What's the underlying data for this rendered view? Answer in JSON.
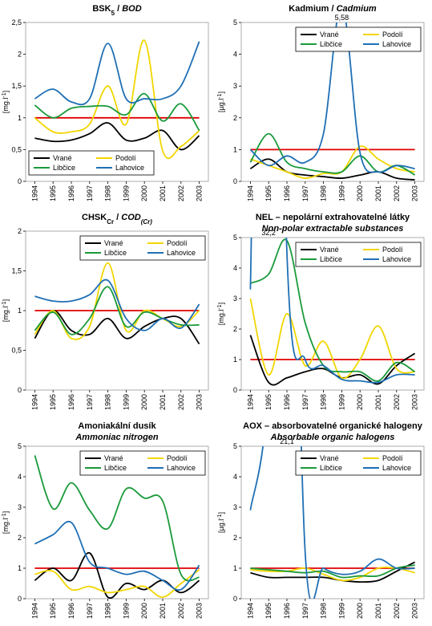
{
  "chart_data": [
    {
      "type": "line",
      "title": [
        {
          "text": "BSK"
        },
        {
          "text": "5",
          "sub": true
        },
        {
          "text": " / "
        },
        {
          "text": "BOD",
          "italic": true
        }
      ],
      "ylabel": [
        {
          "text": "[mg.l"
        },
        {
          "text": "-1",
          "sup": true
        },
        {
          "text": "]"
        }
      ],
      "categories": [
        "1994",
        "1995",
        "1996",
        "1997",
        "1998",
        "1999",
        "2000",
        "2001",
        "2002",
        "2003"
      ],
      "ylim": [
        0,
        2.5
      ],
      "yticks": [
        0,
        {
          "value": 0.5,
          "label": "0,5"
        },
        1,
        {
          "value": 1.5,
          "label": "1,5"
        },
        2,
        {
          "value": 2.5,
          "label": "2,5"
        }
      ],
      "limit": 1,
      "limit_color": "#e00000",
      "legend": "bottom-left",
      "series": [
        {
          "name": "Vrané",
          "color": "#000000",
          "values": [
            0.68,
            0.63,
            0.65,
            0.75,
            0.92,
            0.65,
            0.68,
            0.8,
            0.5,
            0.72
          ]
        },
        {
          "name": "Podolí",
          "color": "#f2d600",
          "values": [
            1.0,
            0.78,
            0.78,
            0.9,
            1.5,
            0.9,
            2.22,
            0.48,
            0.55,
            0.8
          ]
        },
        {
          "name": "Libčice",
          "color": "#1a9a3a",
          "values": [
            1.2,
            1.0,
            1.15,
            1.18,
            1.18,
            1.05,
            1.38,
            0.95,
            1.22,
            0.8
          ]
        },
        {
          "name": "Lahovice",
          "color": "#1f6fb5",
          "values": [
            1.3,
            1.45,
            1.25,
            1.3,
            2.17,
            1.3,
            1.3,
            1.3,
            1.5,
            2.2
          ]
        }
      ]
    },
    {
      "type": "line",
      "title": [
        {
          "text": "Kadmium / "
        },
        {
          "text": "Cadmium",
          "italic": true
        }
      ],
      "ylabel": [
        {
          "text": "[µg.l"
        },
        {
          "text": "-1",
          "sup": true
        },
        {
          "text": "]"
        }
      ],
      "categories": [
        "1994",
        "1995",
        "1996",
        "1997",
        "1998",
        "1999",
        "2000",
        "2001",
        "2002",
        "2003"
      ],
      "ylim": [
        0,
        5
      ],
      "yticks": [
        0,
        1,
        2,
        3,
        4,
        5
      ],
      "limit": 1,
      "limit_color": "#e00000",
      "legend": "top-right",
      "series": [
        {
          "name": "Vrané",
          "color": "#000000",
          "values": [
            0.4,
            0.7,
            0.3,
            0.2,
            0.15,
            0.1,
            0.2,
            0.3,
            0.1,
            0.05
          ]
        },
        {
          "name": "Podolí",
          "color": "#f2d600",
          "values": [
            0.7,
            0.5,
            0.3,
            0.1,
            0.25,
            0.3,
            1.1,
            0.7,
            0.4,
            0.3
          ]
        },
        {
          "name": "Libčice",
          "color": "#1a9a3a",
          "values": [
            0.6,
            1.5,
            0.6,
            0.4,
            0.3,
            0.3,
            0.8,
            0.3,
            0.5,
            0.2
          ]
        },
        {
          "name": "Lahovice",
          "color": "#1f6fb5",
          "values": [
            1.0,
            0.5,
            0.8,
            0.6,
            1.5,
            5.58,
            0.9,
            0.3,
            0.5,
            0.4
          ],
          "value_labels": [
            null,
            null,
            null,
            null,
            null,
            "5,58",
            null,
            null,
            null,
            null
          ]
        }
      ]
    },
    {
      "type": "line",
      "title": [
        {
          "text": "CHSK"
        },
        {
          "text": "Cr",
          "sub": true
        },
        {
          "text": " / "
        },
        {
          "text": "COD",
          "italic": true
        },
        {
          "text": "(Cr)",
          "italic": true,
          "sub": true
        }
      ],
      "ylabel": [
        {
          "text": "[mg.l"
        },
        {
          "text": "-1",
          "sup": true
        },
        {
          "text": "]"
        }
      ],
      "categories": [
        "1994",
        "1995",
        "1996",
        "1997",
        "1998",
        "1999",
        "2000",
        "2001",
        "2002",
        "2003"
      ],
      "ylim": [
        0,
        2
      ],
      "yticks": [
        0,
        {
          "value": 0.5,
          "label": "0,5"
        },
        1,
        {
          "value": 1.5,
          "label": "1,5"
        },
        2
      ],
      "limit": 1,
      "limit_color": "#e00000",
      "legend": "top-right",
      "series": [
        {
          "name": "Vrané",
          "color": "#000000",
          "values": [
            0.65,
            1.0,
            0.75,
            0.7,
            0.9,
            0.65,
            0.8,
            0.9,
            0.9,
            0.58
          ]
        },
        {
          "name": "Podolí",
          "color": "#f2d600",
          "values": [
            0.7,
            1.0,
            0.65,
            0.8,
            1.6,
            0.75,
            1.0,
            0.9,
            0.8,
            1.0
          ]
        },
        {
          "name": "Libčice",
          "color": "#1a9a3a",
          "values": [
            0.75,
            0.98,
            0.7,
            0.9,
            1.3,
            0.8,
            0.98,
            0.9,
            0.82,
            0.82
          ]
        },
        {
          "name": "Lahovice",
          "color": "#1f6fb5",
          "values": [
            1.18,
            1.12,
            1.12,
            1.2,
            1.38,
            0.9,
            0.75,
            0.9,
            0.78,
            1.08
          ]
        }
      ]
    },
    {
      "type": "line",
      "title": [
        {
          "text": "NEL – nepolární extrahovatelné látky"
        }
      ],
      "subtitle": "Non-polar extractable substances",
      "ylabel": [
        {
          "text": "[mg.l"
        },
        {
          "text": "-1",
          "sup": true
        },
        {
          "text": "]"
        }
      ],
      "categories": [
        "1994",
        "1995",
        "1996",
        "1997",
        "1998",
        "1999",
        "2000",
        "2001",
        "2002",
        "2003"
      ],
      "ylim": [
        0,
        5
      ],
      "yticks": [
        0,
        1,
        2,
        3,
        4,
        5
      ],
      "limit": 1,
      "limit_color": "#e00000",
      "legend": "top-right",
      "series": [
        {
          "name": "Vrané",
          "color": "#000000",
          "values": [
            1.8,
            0.25,
            0.4,
            0.6,
            0.7,
            0.4,
            0.5,
            0.2,
            0.8,
            1.2
          ]
        },
        {
          "name": "Podolí",
          "color": "#f2d600",
          "values": [
            3.0,
            0.5,
            2.5,
            0.8,
            1.6,
            0.4,
            1.0,
            2.1,
            0.7,
            0.6
          ]
        },
        {
          "name": "Libčice",
          "color": "#1a9a3a",
          "values": [
            3.5,
            3.8,
            4.9,
            2.2,
            0.8,
            0.6,
            0.6,
            0.3,
            0.9,
            0.6
          ]
        },
        {
          "name": "Lahovice",
          "color": "#1f6fb5",
          "values": [
            3.3,
            32.2,
            4.5,
            1.0,
            0.8,
            0.35,
            0.3,
            0.25,
            0.5,
            0.5
          ],
          "value_labels": [
            null,
            "32,2",
            null,
            null,
            null,
            null,
            null,
            null,
            null,
            null
          ]
        }
      ]
    },
    {
      "type": "line",
      "title": [
        {
          "text": "Amoniakální dusík"
        }
      ],
      "subtitle": "Ammoniac nitrogen",
      "ylabel": [
        {
          "text": "[mg.l"
        },
        {
          "text": "-1",
          "sup": true
        },
        {
          "text": "]"
        }
      ],
      "categories": [
        "1994",
        "1995",
        "1996",
        "1997",
        "1998",
        "1999",
        "2000",
        "2001",
        "2002",
        "2003"
      ],
      "ylim": [
        0,
        5
      ],
      "yticks": [
        0,
        1,
        2,
        3,
        4,
        5
      ],
      "limit": 1,
      "limit_color": "#e00000",
      "legend": "top-right",
      "series": [
        {
          "name": "Vrané",
          "color": "#000000",
          "values": [
            0.6,
            1.0,
            0.6,
            1.5,
            0.05,
            0.5,
            0.3,
            0.6,
            0.2,
            0.6
          ]
        },
        {
          "name": "Podolí",
          "color": "#f2d600",
          "values": [
            0.8,
            0.9,
            0.3,
            0.4,
            0.2,
            0.3,
            0.4,
            0.05,
            0.5,
            0.95
          ]
        },
        {
          "name": "Libčice",
          "color": "#1a9a3a",
          "values": [
            4.7,
            2.95,
            3.8,
            2.9,
            2.3,
            3.6,
            3.3,
            3.2,
            0.8,
            0.7
          ]
        },
        {
          "name": "Lahovice",
          "color": "#1f6fb5",
          "values": [
            1.8,
            2.1,
            2.5,
            1.2,
            1.0,
            0.8,
            0.9,
            0.6,
            0.3,
            1.1
          ]
        }
      ]
    },
    {
      "type": "line",
      "title": [
        {
          "text": "AOX – absorbovatelné organické halogeny"
        }
      ],
      "subtitle": "Absorbable organic halogens",
      "ylabel": [
        {
          "text": "[µg.l"
        },
        {
          "text": "-1",
          "sup": true
        },
        {
          "text": "]"
        }
      ],
      "categories": [
        "1994",
        "1995",
        "1996",
        "1997",
        "1998",
        "1999",
        "2000",
        "2001",
        "2002",
        "2003"
      ],
      "ylim": [
        0,
        5
      ],
      "yticks": [
        0,
        1,
        2,
        3,
        4,
        5
      ],
      "limit": 1,
      "limit_color": "#e00000",
      "legend": "top-right",
      "series": [
        {
          "name": "Vrané",
          "color": "#000000",
          "values": [
            0.85,
            0.7,
            0.7,
            0.7,
            0.7,
            0.6,
            0.55,
            0.6,
            0.9,
            1.2
          ]
        },
        {
          "name": "Podolí",
          "color": "#f2d600",
          "values": [
            0.95,
            0.9,
            0.9,
            1.0,
            0.8,
            0.6,
            0.7,
            1.0,
            1.0,
            0.85
          ]
        },
        {
          "name": "Libčice",
          "color": "#1a9a3a",
          "values": [
            1.0,
            0.95,
            0.9,
            0.85,
            0.9,
            0.7,
            0.75,
            0.75,
            1.0,
            1.1
          ]
        },
        {
          "name": "Lahovice",
          "color": "#1f6fb5",
          "values": [
            2.9,
            7.0,
            21.1,
            1.5,
            1.0,
            0.8,
            0.9,
            1.3,
            1.0,
            1.0
          ],
          "value_labels": [
            null,
            null,
            "21,1",
            null,
            null,
            null,
            null,
            null,
            null,
            null
          ]
        }
      ]
    }
  ]
}
